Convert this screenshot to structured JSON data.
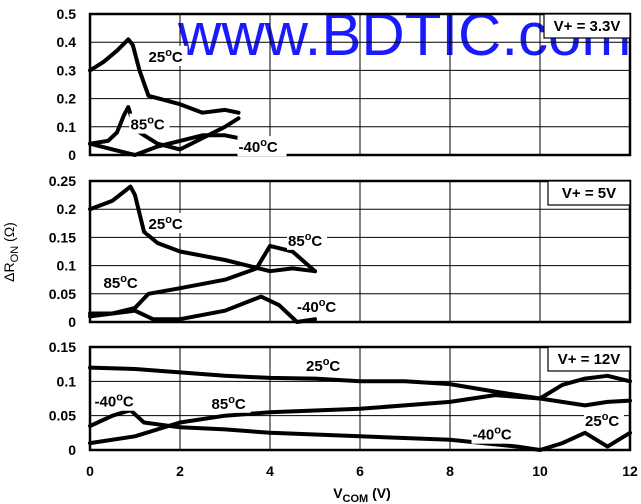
{
  "watermark": "www.BDTIC.com",
  "colors": {
    "line": "#000000",
    "grid": "#000000",
    "watermark": "#1a1aff",
    "background": "#ffffff"
  },
  "chart_data": {
    "type": "line",
    "xlabel": "V_COM (V)",
    "ylabel": "ΔR_ON (Ω)",
    "xlim": [
      0,
      12
    ],
    "x_ticks": [
      "0",
      "2",
      "4",
      "6",
      "8",
      "10",
      "12"
    ],
    "grid": true,
    "panels": [
      {
        "label": "V+ = 3.3V",
        "ylim": [
          0,
          0.5
        ],
        "y_ticks": [
          "0",
          "0.1",
          "0.2",
          "0.3",
          "0.4",
          "0.5"
        ],
        "series": [
          {
            "name": "25°C",
            "x": [
              0,
              0.3,
              0.6,
              0.85,
              0.95,
              1.1,
              1.3,
              2,
              2.5,
              3,
              3.3
            ],
            "y": [
              0.3,
              0.33,
              0.37,
              0.41,
              0.39,
              0.3,
              0.21,
              0.18,
              0.15,
              0.16,
              0.15
            ]
          },
          {
            "name": "85°C",
            "x": [
              0,
              0.4,
              0.6,
              0.75,
              0.85,
              1.0,
              1.5,
              2,
              2.5,
              3,
              3.3
            ],
            "y": [
              0.04,
              0.05,
              0.08,
              0.14,
              0.17,
              0.09,
              0.04,
              0.02,
              0.06,
              0.1,
              0.13
            ]
          },
          {
            "name": "-40°C",
            "x": [
              0,
              0.5,
              1,
              1.5,
              2,
              2.5,
              3,
              3.3
            ],
            "y": [
              0.04,
              0.02,
              0.0,
              0.03,
              0.05,
              0.07,
              0.07,
              0.06
            ]
          }
        ],
        "series_labels": [
          {
            "text": "25",
            "x": 1.3,
            "y": 0.33
          },
          {
            "text": "85",
            "x": 0.9,
            "y": 0.09
          },
          {
            "text": "-40",
            "x": 3.3,
            "y": 0.01
          }
        ]
      },
      {
        "label": "V+ = 5V",
        "ylim": [
          0,
          0.25
        ],
        "y_ticks": [
          "0",
          "0.05",
          "0.1",
          "0.15",
          "0.2",
          "0.25"
        ],
        "series": [
          {
            "name": "25°C",
            "x": [
              0,
              0.5,
              0.9,
              1.0,
              1.2,
              1.5,
              2,
              3,
              4,
              4.5,
              5
            ],
            "y": [
              0.2,
              0.215,
              0.24,
              0.225,
              0.16,
              0.14,
              0.125,
              0.11,
              0.09,
              0.095,
              0.09
            ]
          },
          {
            "name": "85°C",
            "x": [
              0,
              0.5,
              1,
              1.3,
              2,
              3,
              3.7,
              4,
              4.5,
              5
            ],
            "y": [
              0.01,
              0.015,
              0.025,
              0.05,
              0.06,
              0.075,
              0.095,
              0.135,
              0.125,
              0.09
            ]
          },
          {
            "name": "-40°C",
            "x": [
              0,
              0.5,
              1,
              1.4,
              2,
              3,
              3.8,
              4.2,
              4.6,
              5
            ],
            "y": [
              0.015,
              0.015,
              0.02,
              0.005,
              0.005,
              0.02,
              0.045,
              0.03,
              0.0,
              0.005
            ]
          }
        ],
        "series_labels": [
          {
            "text": "25",
            "x": 1.3,
            "y": 0.165
          },
          {
            "text": "85",
            "x": 4.4,
            "y": 0.135
          },
          {
            "text": "85",
            "x": 0.3,
            "y": 0.06
          },
          {
            "text": "-40",
            "x": 4.6,
            "y": 0.018
          }
        ]
      },
      {
        "label": "V+ = 12V",
        "ylim": [
          0,
          0.15
        ],
        "y_ticks": [
          "0",
          "0.05",
          "0.1",
          "0.15"
        ],
        "series": [
          {
            "name": "25°C",
            "x": [
              0,
              1,
              2,
              3,
              4,
              5,
              6,
              7,
              8,
              9,
              10,
              10.5,
              11,
              11.5,
              12
            ],
            "y": [
              0.12,
              0.118,
              0.113,
              0.108,
              0.105,
              0.104,
              0.1,
              0.1,
              0.096,
              0.085,
              0.075,
              0.095,
              0.104,
              0.108,
              0.1
            ]
          },
          {
            "name": "85°C",
            "x": [
              0,
              1,
              1.5,
              2,
              3,
              4,
              6,
              8,
              9,
              10,
              11,
              11.5,
              12
            ],
            "y": [
              0.01,
              0.02,
              0.03,
              0.04,
              0.05,
              0.055,
              0.06,
              0.07,
              0.08,
              0.075,
              0.065,
              0.07,
              0.072
            ]
          },
          {
            "name": "-40°C",
            "x": [
              0,
              0.5,
              0.9,
              1.2,
              2,
              3,
              4,
              6,
              8,
              9.5,
              10,
              10.5,
              11,
              11.5,
              12
            ],
            "y": [
              0.035,
              0.05,
              0.058,
              0.04,
              0.033,
              0.03,
              0.025,
              0.02,
              0.015,
              0.005,
              0.0,
              0.01,
              0.025,
              0.005,
              0.025
            ]
          }
        ],
        "series_labels": [
          {
            "text": "25",
            "x": 4.8,
            "y": 0.115
          },
          {
            "text": "85",
            "x": 2.7,
            "y": 0.06
          },
          {
            "text": "-40",
            "x": 0.1,
            "y": 0.063
          },
          {
            "text": "-40",
            "x": 8.5,
            "y": 0.015
          },
          {
            "text": "25",
            "x": 11.0,
            "y": 0.035
          }
        ]
      }
    ]
  }
}
